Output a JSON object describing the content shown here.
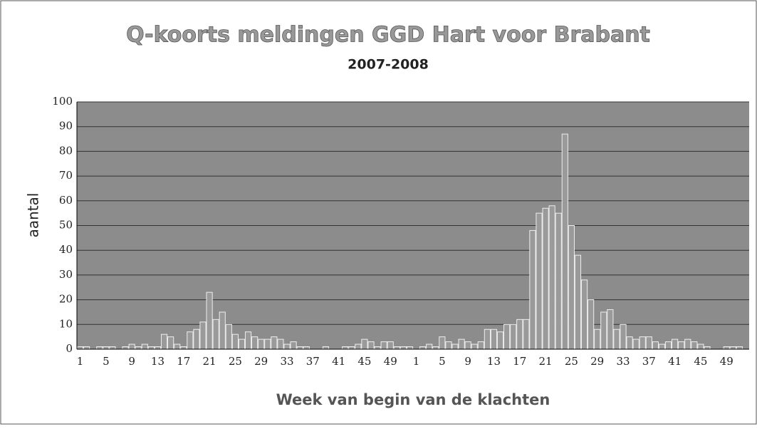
{
  "chart_data": {
    "type": "bar",
    "title": "Q-koorts meldingen GGD Hart voor Brabant",
    "subtitle": "2007-2008",
    "y_label": "aantal",
    "x_label": "Week van begin van de klachten",
    "categories": [
      "1",
      null,
      null,
      null,
      "5",
      null,
      null,
      null,
      "9",
      null,
      null,
      null,
      "13",
      null,
      null,
      null,
      "17",
      null,
      null,
      null,
      "21",
      null,
      null,
      null,
      "25",
      null,
      null,
      null,
      "29",
      null,
      null,
      null,
      "33",
      null,
      null,
      null,
      "37",
      null,
      null,
      null,
      "41",
      null,
      null,
      null,
      "45",
      null,
      null,
      null,
      "49",
      null,
      null,
      null,
      "1",
      null,
      null,
      null,
      "5",
      null,
      null,
      null,
      "9",
      null,
      null,
      null,
      "13",
      null,
      null,
      null,
      "17",
      null,
      null,
      null,
      "21",
      null,
      null,
      null,
      "25",
      null,
      null,
      null,
      "29",
      null,
      null,
      null,
      "33",
      null,
      null,
      null,
      "37",
      null,
      null,
      null,
      "41",
      null,
      null,
      null,
      "45",
      null,
      null,
      null,
      "49",
      null,
      null,
      null
    ],
    "values": [
      1,
      1,
      0,
      1,
      1,
      1,
      0,
      1,
      2,
      1,
      2,
      1,
      1,
      6,
      5,
      2,
      1,
      7,
      8,
      11,
      23,
      12,
      15,
      10,
      6,
      4,
      7,
      5,
      4,
      4,
      5,
      4,
      2,
      3,
      1,
      1,
      0,
      0,
      1,
      0,
      0,
      1,
      1,
      2,
      4,
      3,
      1,
      3,
      3,
      1,
      1,
      1,
      0,
      1,
      2,
      1,
      5,
      3,
      2,
      4,
      3,
      2,
      3,
      8,
      8,
      7,
      10,
      10,
      12,
      12,
      48,
      55,
      57,
      58,
      55,
      87,
      50,
      38,
      28,
      20,
      8,
      15,
      16,
      8,
      10,
      5,
      4,
      5,
      5,
      3,
      2,
      3,
      4,
      3,
      4,
      3,
      2,
      1,
      0,
      0,
      1,
      1,
      1,
      0
    ],
    "color": "#9a9a9a",
    "ylim": [
      0,
      100
    ],
    "yticks": [
      0,
      10,
      20,
      30,
      40,
      50,
      60,
      70,
      80,
      90,
      100
    ],
    "grid": true
  }
}
